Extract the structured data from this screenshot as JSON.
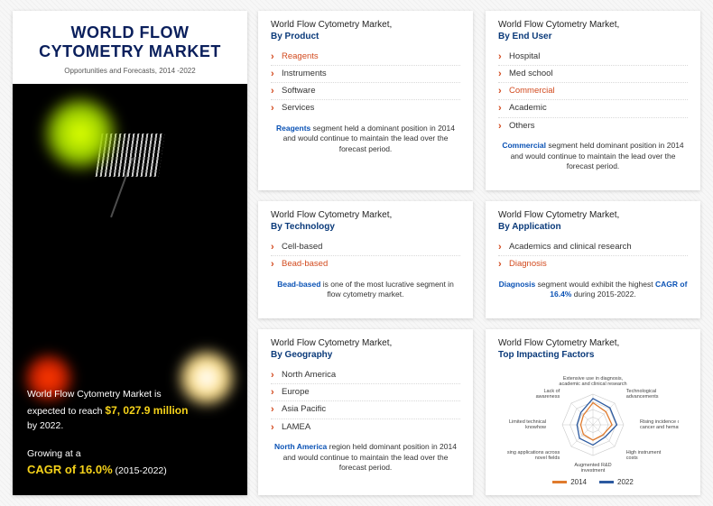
{
  "hero": {
    "title_line1": "WORLD FLOW",
    "title_line2": "CYTOMETRY MARKET",
    "subtitle": "Opportunities and Forecasts, 2014 -2022",
    "stat_line_pre": "World Flow Cytometry Market is",
    "stat_line_mid": "expected to reach ",
    "amount": "$7, 027.9 million",
    "stat_line_post": "by 2022.",
    "grow_pre": "Growing at a",
    "cagr": "CAGR of 16.0%",
    "cagr_range": " (2015-2022)"
  },
  "cards": [
    {
      "pre": "World Flow Cytometry Market,",
      "seg": "By Product",
      "items": [
        "Reagents",
        "Instruments",
        "Software",
        "Services"
      ],
      "highlight_idx": 0,
      "foot_kw": "Reagents",
      "foot_rest": " segment held a dominant position in 2014 and would continue to maintain the lead over the forecast period."
    },
    {
      "pre": "World Flow Cytometry Market,",
      "seg": "By End User",
      "items": [
        "Hospital",
        "Med school",
        "Commercial",
        "Academic",
        "Others"
      ],
      "highlight_idx": 2,
      "foot_kw": "Commercial",
      "foot_rest": " segment held dominant position in 2014 and would continue to maintain the lead over the forecast period."
    },
    {
      "pre": "World Flow Cytometry Market,",
      "seg": "By Technology",
      "items": [
        "Cell-based",
        "Bead-based"
      ],
      "highlight_idx": 1,
      "foot_kw": "Bead-based",
      "foot_rest": "  is one of the most lucrative segment in flow cytometry market."
    },
    {
      "pre": "World Flow Cytometry Market,",
      "seg": "By Application",
      "items": [
        "Academics and clinical research",
        "Diagnosis"
      ],
      "highlight_idx": 1,
      "foot_kw": "Diagnosis",
      "foot_rest": " segment would exhibit the highest ",
      "foot_kw2": "CAGR of 16.4%",
      "foot_rest2": " during 2015-2022."
    },
    {
      "pre": "World Flow Cytometry Market,",
      "seg": "By Geography",
      "items": [
        "North America",
        "Europe",
        "Asia Pacific",
        "LAMEA"
      ],
      "highlight_idx": -1,
      "foot_kw": "North America",
      "foot_rest": " region held dominant position in 2014 and would continue to maintain the lead over the forecast period."
    },
    {
      "pre": "World Flow Cytometry Market,",
      "seg": "Top Impacting Factors",
      "radar": {
        "axes": [
          "Extensive use in diagnosis, academic and clinical research",
          "Technological advancements",
          "Rising incidence of HIV, cancer and hematological disorders",
          "High instrument costs",
          "Augmented R&D investment",
          "Increasing applications across novel fields",
          "Limited technical knowhow",
          "Lack of awareness"
        ],
        "series": [
          {
            "label": "2014",
            "color": "#e07b2d",
            "values": [
              0.72,
              0.6,
              0.62,
              0.46,
              0.5,
              0.44,
              0.4,
              0.44
            ]
          },
          {
            "label": "2022",
            "color": "#2c5aa0",
            "values": [
              0.86,
              0.78,
              0.78,
              0.56,
              0.66,
              0.62,
              0.52,
              0.56
            ]
          }
        ],
        "rings": 4,
        "grid_color": "#c9c9c9",
        "bg": "#ffffff"
      }
    }
  ],
  "colors": {
    "accent_orange": "#d24a1e",
    "accent_blue": "#0a52b5",
    "title_navy": "#0a1f5c",
    "gold": "#f5d21a"
  }
}
